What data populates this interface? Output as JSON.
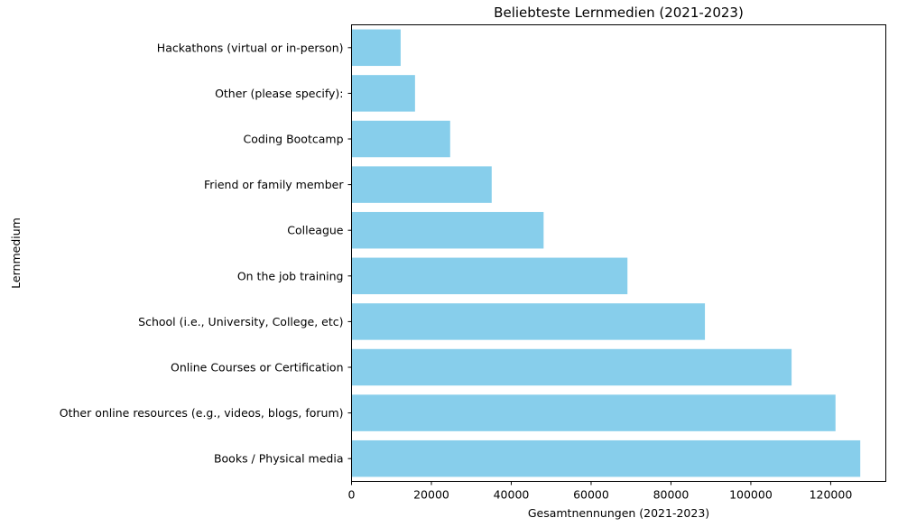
{
  "chart_data": {
    "type": "bar",
    "orientation": "horizontal",
    "title": "Beliebteste Lernmedien (2021-2023)",
    "xlabel": "Gesamtnennungen (2021-2023)",
    "ylabel": "Lernmedium",
    "categories": [
      "Books / Physical media",
      "Other online resources (e.g., videos, blogs, forum)",
      "Online Courses or Certification",
      "School (i.e., University, College, etc)",
      "On the job training",
      "Colleague",
      "Friend or family member",
      "Coding Bootcamp",
      "Other (please specify):",
      "Hackathons (virtual or in-person)"
    ],
    "values": [
      127400,
      121200,
      110200,
      88500,
      69100,
      48100,
      35100,
      24700,
      15900,
      12300
    ],
    "xlim": [
      0,
      133800
    ],
    "xticks": [
      0,
      20000,
      40000,
      60000,
      80000,
      100000,
      120000
    ],
    "bar_color": "#87ceeb",
    "grid": false,
    "legend": "none"
  }
}
